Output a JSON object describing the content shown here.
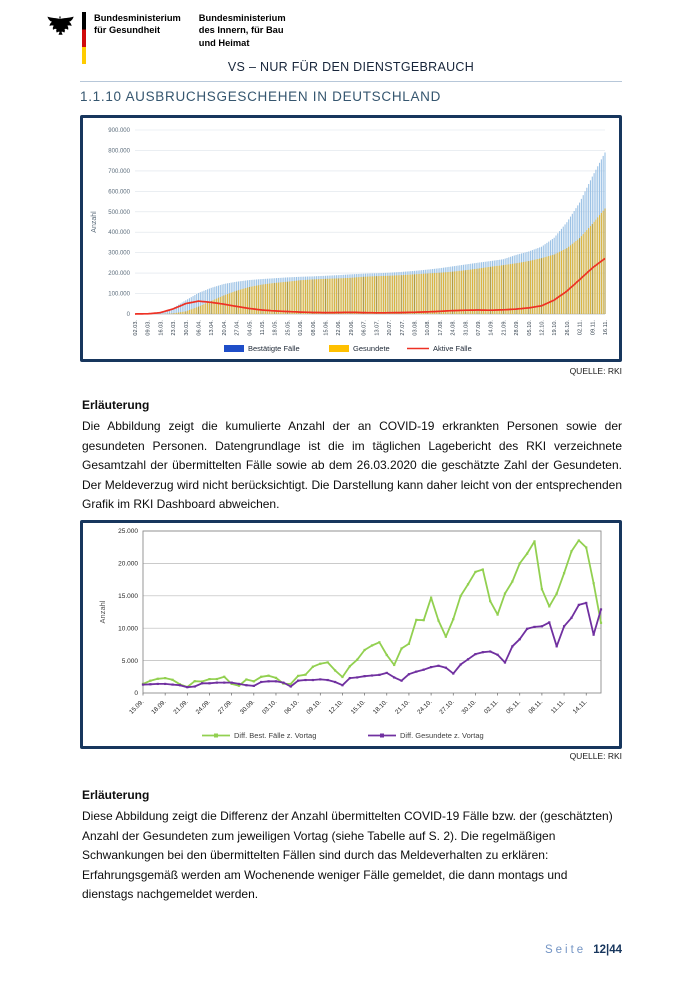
{
  "header": {
    "ministry1": {
      "line1": "Bundesministerium",
      "line2": "für Gesundheit"
    },
    "ministry2": {
      "line1": "Bundesministerium",
      "line2": "des Innern, für Bau",
      "line3": "und Heimat"
    },
    "classification": "VS – NUR FÜR DEN DIENSTGEBRAUCH"
  },
  "section_title": "1.1.10 AUSBRUCHSGESCHEHEN IN DEUTSCHLAND",
  "source_label_1": "QUELLE: RKI",
  "source_label_2": "QUELLE: RKI",
  "explanation_1": {
    "heading": "Erläuterung",
    "text": "Die Abbildung zeigt die kumulierte Anzahl der an COVID-19 erkrankten Personen sowie der gesundeten Personen. Datengrundlage ist die im täglichen Lagebericht des RKI verzeichnete Gesamtzahl der übermittelten Fälle sowie ab dem 26.03.2020 die geschätzte Zahl der Gesundeten. Der Meldeverzug wird nicht berücksichtigt. Die Darstellung kann daher leicht von der entsprechenden Grafik im RKI Dashboard abweichen."
  },
  "explanation_2": {
    "heading": "Erläuterung",
    "text": "Diese Abbildung zeigt die Differenz der Anzahl übermittelten COVID-19 Fälle bzw. der (geschätzten) Anzahl der Gesundeten zum jeweiligen Vortag (siehe Tabelle auf S. 2). Die regelmäßigen Schwankungen bei den übermittelten Fällen sind durch das Meldeverhalten zu erklären: Erfahrungsgemäß werden am Wochenende weniger Fälle gemeldet, die dann montags und dienstags nachgemeldet werden."
  },
  "footer": {
    "page_word": "Seite",
    "page_number": "12|44"
  },
  "chart_data": [
    {
      "type": "bar",
      "title": "",
      "xlabel": "",
      "ylabel": "Anzahl",
      "ylim": [
        0,
        900000
      ],
      "ytick_step": 100000,
      "grid": true,
      "legend_position": "bottom",
      "categories": [
        "02.03.",
        "09.03.",
        "16.03.",
        "23.03.",
        "30.03.",
        "06.04.",
        "13.04.",
        "20.04.",
        "27.04.",
        "04.05.",
        "11.05.",
        "18.05.",
        "25.05.",
        "01.06.",
        "08.06.",
        "15.06.",
        "22.06.",
        "29.06.",
        "06.07.",
        "13.07.",
        "20.07.",
        "27.07.",
        "03.08.",
        "10.08.",
        "17.08.",
        "24.08.",
        "31.08.",
        "07.09.",
        "14.09.",
        "21.09.",
        "28.09.",
        "05.10.",
        "12.10.",
        "19.10.",
        "26.10.",
        "02.11.",
        "09.11.",
        "16.11."
      ],
      "series": [
        {
          "name": "Bestätigte Fälle",
          "type": "bar",
          "color": "#9cc2e5",
          "legend_color": "#1f4ec8",
          "values": [
            150,
            1100,
            7000,
            29000,
            67000,
            103000,
            128000,
            147000,
            158000,
            166000,
            171000,
            175000,
            179000,
            182000,
            184000,
            187000,
            190000,
            194000,
            197000,
            199000,
            202000,
            206000,
            211000,
            217000,
            224000,
            233000,
            242000,
            251000,
            259000,
            268000,
            289000,
            306000,
            329000,
            373000,
            449000,
            545000,
            672000,
            790000
          ]
        },
        {
          "name": "Gesundete",
          "type": "bar",
          "color": "#dcb53e",
          "legend_color": "#ffc000",
          "values": [
            0,
            0,
            100,
            3000,
            13000,
            36000,
            64000,
            91000,
            114000,
            132000,
            144000,
            152000,
            158000,
            165000,
            169000,
            172000,
            174000,
            177000,
            182000,
            185000,
            187000,
            190000,
            194000,
            198000,
            202000,
            207000,
            214000,
            222000,
            231000,
            239000,
            248000,
            259000,
            273000,
            291000,
            322000,
            371000,
            440000,
            516000
          ]
        },
        {
          "name": "Aktive Fälle",
          "type": "line",
          "color": "#ee3124",
          "legend_color": "#ee3124",
          "values": [
            150,
            1050,
            6700,
            25000,
            51000,
            63000,
            57000,
            48000,
            37000,
            27000,
            19500,
            15000,
            12000,
            9500,
            7500,
            6800,
            7200,
            8200,
            6900,
            5800,
            6200,
            7200,
            8500,
            10500,
            13000,
            16500,
            18500,
            19500,
            18500,
            20500,
            24000,
            30000,
            40000,
            68000,
            112000,
            168000,
            225000,
            272000
          ]
        }
      ]
    },
    {
      "type": "line",
      "title": "",
      "xlabel": "",
      "ylabel": "Anzahl",
      "ylim": [
        0,
        25000
      ],
      "ytick_step": 5000,
      "grid": true,
      "legend_position": "bottom",
      "points_per_tick": 3,
      "x_tick_labels": [
        "15.09.",
        "18.09.",
        "21.09.",
        "24.09.",
        "27.09.",
        "30.09.",
        "03.10.",
        "06.10.",
        "09.10.",
        "12.10.",
        "15.10.",
        "18.10.",
        "21.10.",
        "24.10.",
        "27.10.",
        "30.10.",
        "02.11.",
        "05.11.",
        "08.11.",
        "11.11.",
        "14.11."
      ],
      "series": [
        {
          "name": "Diff. Best. Fälle z. Vortag",
          "color": "#92d050",
          "values": [
            1407,
            1901,
            2194,
            2297,
            2034,
            1345,
            922,
            1821,
            1769,
            2143,
            2153,
            2507,
            1411,
            1126,
            2089,
            1798,
            2503,
            2673,
            2331,
            1450,
            1382,
            2639,
            2828,
            4058,
            4516,
            4721,
            3483,
            2467,
            4122,
            5132,
            6638,
            7334,
            7830,
            5862,
            4325,
            6868,
            7595,
            11287,
            11242,
            14714,
            11176,
            8685,
            11409,
            14964,
            16774,
            18681,
            19059,
            14177,
            12097,
            15352,
            17214,
            19990,
            21506,
            23399,
            16017,
            13363,
            15332,
            18487,
            21866,
            23542,
            22461,
            16947,
            10824
          ]
        },
        {
          "name": "Diff. Gesundete z. Vortag",
          "color": "#7030a0",
          "values": [
            1300,
            1350,
            1400,
            1400,
            1300,
            1200,
            900,
            1000,
            1500,
            1500,
            1600,
            1600,
            1600,
            1400,
            1200,
            1100,
            1700,
            1800,
            1800,
            1600,
            1000,
            1900,
            2000,
            2000,
            2100,
            2000,
            1700,
            1200,
            2300,
            2400,
            2600,
            2700,
            2800,
            3100,
            2400,
            1900,
            2900,
            3300,
            3600,
            4000,
            4200,
            3900,
            3000,
            4400,
            5200,
            6000,
            6300,
            6400,
            5900,
            4700,
            7200,
            8300,
            9900,
            10200,
            10300,
            10900,
            7200,
            10300,
            11600,
            13600,
            13900,
            9000,
            12900
          ]
        }
      ]
    }
  ]
}
